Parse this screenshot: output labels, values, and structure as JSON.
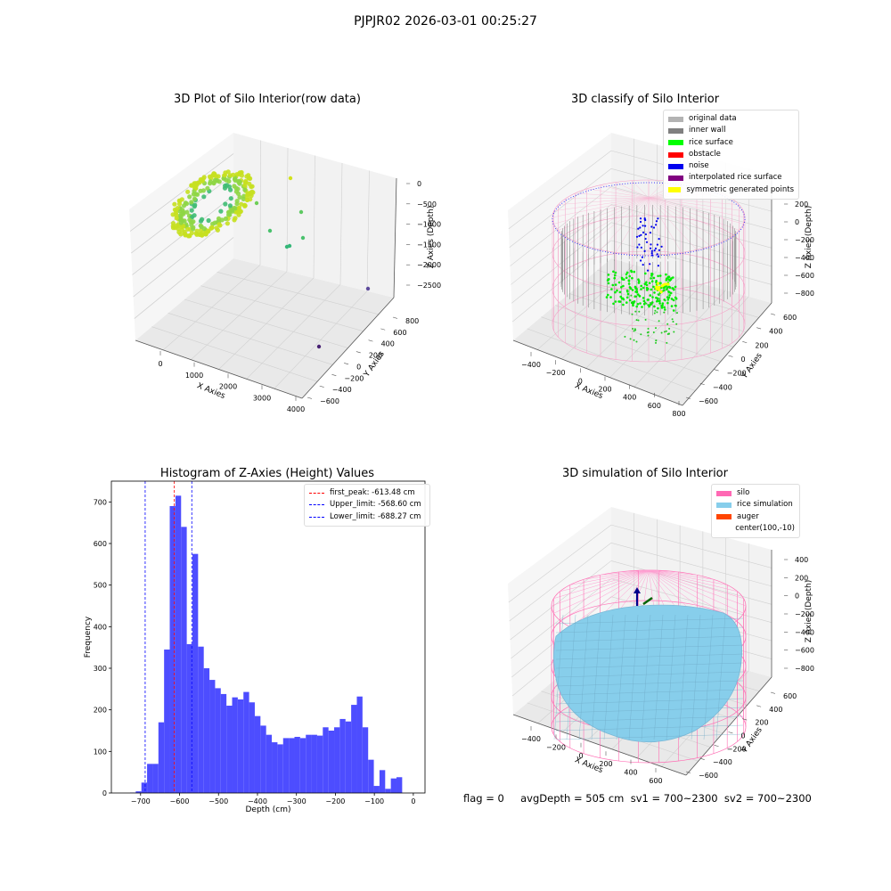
{
  "suptitle": "PJPJR02 2026-03-01 00:25:27",
  "panels": {
    "raw": {
      "title": "3D Plot of Silo Interior(row data)",
      "xlabel": "X Axies",
      "ylabel": "Y Axies",
      "zlabel": "Z Axies (Depth)",
      "xticks": [
        "0",
        "1000",
        "2000",
        "3000",
        "4000"
      ],
      "yticks": [
        "800",
        "600",
        "400",
        "200",
        "0",
        "−200",
        "−400",
        "−600"
      ],
      "zticks": [
        "0",
        "−500",
        "−1000",
        "−1500",
        "−2000",
        "−2500"
      ]
    },
    "classify": {
      "title": "3D classify of Silo Interior",
      "xlabel": "X Axies",
      "ylabel": "Y Axies",
      "zlabel": "Z Axies (Depth)",
      "xticks": [
        "−400",
        "−200",
        "0",
        "200",
        "400",
        "600",
        "800"
      ],
      "yticks": [
        "600",
        "400",
        "200",
        "0",
        "−200",
        "−400",
        "−600"
      ],
      "zticks": [
        "200",
        "0",
        "−200",
        "−400",
        "−600",
        "−800"
      ],
      "zticks_top": [
        "400"
      ],
      "legend": [
        {
          "label": "original data",
          "color": "#b3b3b3"
        },
        {
          "label": "inner wall",
          "color": "#808080"
        },
        {
          "label": "rice surface",
          "color": "#00ff00"
        },
        {
          "label": "obstacle",
          "color": "#ff0000"
        },
        {
          "label": "noise",
          "color": "#0000ee"
        },
        {
          "label": "interpolated rice surface",
          "color": "#800080"
        },
        {
          "label": "symmetric generated points",
          "color": "#ffff00"
        }
      ]
    },
    "simulation": {
      "title": "3D simulation of Silo Interior",
      "xlabel": "X Axies",
      "ylabel": "Y Axies",
      "zlabel": "Z Axies (Depth)",
      "xticks": [
        "−400",
        "−200",
        "0",
        "200",
        "400",
        "600"
      ],
      "yticks": [
        "600",
        "400",
        "200",
        "0",
        "−200",
        "−400",
        "−600"
      ],
      "zticks": [
        "400",
        "200",
        "0",
        "−200",
        "−400",
        "−600",
        "−800"
      ],
      "legend": [
        {
          "label": "silo",
          "color": "#ff69b4"
        },
        {
          "label": "rice simulation",
          "color": "#87ceeb"
        },
        {
          "label": "auger",
          "color": "#ff4500"
        },
        {
          "label": "center(100,-10)",
          "color": ""
        }
      ]
    }
  },
  "chart_data": [
    {
      "type": "scatter",
      "title": "3D Plot of Silo Interior(row data)",
      "xlabel": "X Axies",
      "ylabel": "Y Axies",
      "zlabel": "Z Axies (Depth)",
      "xlim": [
        -400,
        4200
      ],
      "ylim": [
        -700,
        900
      ],
      "zlim": [
        -2900,
        100
      ],
      "outliers": [
        {
          "x": 1700,
          "y": 700,
          "z": -100
        },
        {
          "x": 1500,
          "y": 500,
          "z": -900
        },
        {
          "x": 1300,
          "y": 300,
          "z": -1100
        },
        {
          "x": 1900,
          "y": 100,
          "z": -1500
        },
        {
          "x": 1800,
          "y": 0,
          "z": -1600
        },
        {
          "x": 3700,
          "y": -100,
          "z": -2300
        },
        {
          "x": 3900,
          "y": -600,
          "z": -2800
        }
      ]
    },
    {
      "type": "scatter",
      "title": "3D classify of Silo Interior",
      "xlabel": "X Axies",
      "ylabel": "Y Axies",
      "zlabel": "Z Axies (Depth)",
      "xlim": [
        -500,
        800
      ],
      "ylim": [
        -650,
        650
      ],
      "zlim": [
        -900,
        300
      ],
      "series": [
        {
          "name": "original data"
        },
        {
          "name": "inner wall"
        },
        {
          "name": "rice surface"
        },
        {
          "name": "obstacle"
        },
        {
          "name": "noise"
        },
        {
          "name": "interpolated rice surface"
        },
        {
          "name": "symmetric generated points"
        }
      ]
    },
    {
      "type": "bar",
      "title": "Histogram of Z-Axies (Height) Values",
      "xlabel": "Depth (cm)",
      "ylabel": "Frequency",
      "xlim": [
        -775,
        30
      ],
      "ylim": [
        0,
        750
      ],
      "xticks": [
        "−700",
        "−600",
        "−500",
        "−400",
        "−300",
        "−200",
        "−100",
        "0"
      ],
      "yticks": [
        "0",
        "100",
        "200",
        "300",
        "400",
        "500",
        "600",
        "700"
      ],
      "bin_start": -727,
      "bin_width": 14.55,
      "values": [
        1,
        4,
        25,
        70,
        70,
        170,
        345,
        690,
        715,
        640,
        358,
        575,
        352,
        300,
        272,
        252,
        238,
        210,
        230,
        225,
        243,
        218,
        185,
        162,
        140,
        122,
        117,
        132,
        132,
        135,
        132,
        140,
        140,
        138,
        158,
        150,
        158,
        178,
        172,
        212,
        232,
        158,
        80,
        17,
        55,
        10,
        35,
        38
      ],
      "vlines": [
        {
          "label": "first_peak: -613.48 cm",
          "x": -613.48,
          "color": "#ff0000"
        },
        {
          "label": "Upper_limit: -568.60 cm",
          "x": -568.6,
          "color": "#0000ff"
        },
        {
          "label": "Lower_limit: -688.27 cm",
          "x": -688.27,
          "color": "#0000ff"
        }
      ]
    },
    {
      "type": "scatter",
      "title": "3D simulation of Silo Interior",
      "xlabel": "X Axies",
      "ylabel": "Y Axies",
      "zlabel": "Z Axies (Depth)",
      "xlim": [
        -500,
        700
      ],
      "ylim": [
        -650,
        650
      ],
      "zlim": [
        -900,
        450
      ],
      "series": [
        {
          "name": "silo"
        },
        {
          "name": "rice simulation"
        },
        {
          "name": "auger"
        },
        {
          "name": "center(100,-10)"
        }
      ]
    }
  ],
  "footer": "flag = 0     avgDepth = 505 cm  sv1 = 700~2300  sv2 = 700~2300"
}
